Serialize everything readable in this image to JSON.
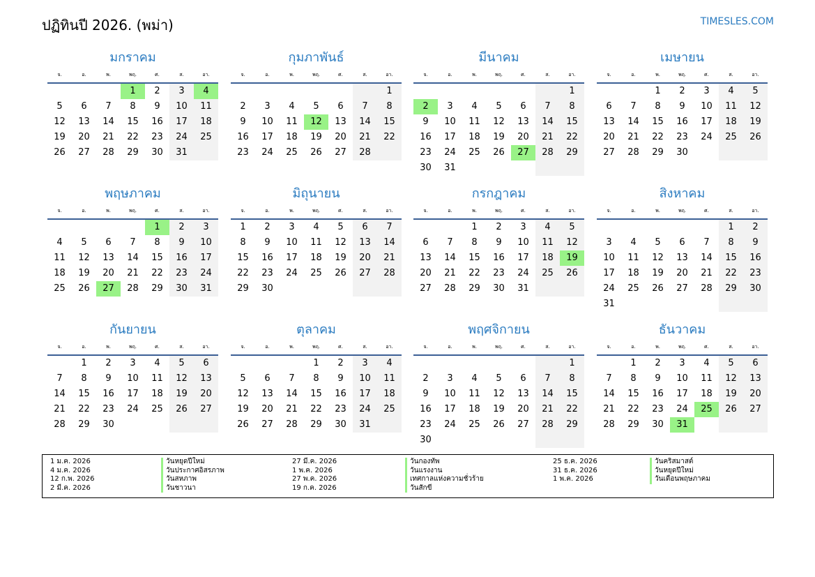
{
  "header": {
    "title": "ปฏิทินปี 2026. (พม่า)",
    "brand": "TIMESLES.COM"
  },
  "calendar": {
    "year": 2026,
    "weekdays": [
      "จ.",
      "อ.",
      "พ.",
      "พฤ.",
      "ศ.",
      "ส.",
      "อา."
    ],
    "colors": {
      "holiday": "#99f287",
      "weekend": "#f2f2f2",
      "accent": "#2a7bc0"
    },
    "months": [
      {
        "name": "มกราคม",
        "holidays": [
          1,
          4
        ]
      },
      {
        "name": "กุมภาพันธ์",
        "holidays": [
          12
        ]
      },
      {
        "name": "มีนาคม",
        "holidays": [
          2,
          27
        ]
      },
      {
        "name": "เมษายน",
        "holidays": []
      },
      {
        "name": "พฤษภาคม",
        "holidays": [
          1,
          27
        ]
      },
      {
        "name": "มิถุนายน",
        "holidays": []
      },
      {
        "name": "กรกฎาคม",
        "holidays": [
          19
        ]
      },
      {
        "name": "สิงหาคม",
        "holidays": []
      },
      {
        "name": "กันยายน",
        "holidays": []
      },
      {
        "name": "ตุลาคม",
        "holidays": []
      },
      {
        "name": "พฤศจิกายน",
        "holidays": []
      },
      {
        "name": "ธันวาคม",
        "holidays": [
          25,
          31
        ]
      }
    ]
  },
  "legend": [
    [
      {
        "date": "1 ม.ค. 2026",
        "name": "วันหยุดปีใหม่"
      },
      {
        "date": "4 ม.ค. 2026",
        "name": "วันประกาศอิสรภาพ"
      },
      {
        "date": "12 ก.พ. 2026",
        "name": "วันสหภาพ"
      },
      {
        "date": "2 มี.ค. 2026",
        "name": "วันชาวนา"
      }
    ],
    [
      {
        "date": "27 มี.ค. 2026",
        "name": "วันกองทัพ"
      },
      {
        "date": "1 พ.ค. 2026",
        "name": "วันแรงงาน"
      },
      {
        "date": "27 พ.ค. 2026",
        "name": "เทศกาลแห่งความชั่วร้าย"
      },
      {
        "date": "19 ก.ค. 2026",
        "name": "วันสักขี"
      }
    ],
    [
      {
        "date": "25 ธ.ค. 2026",
        "name": "วันคริสมาสต์"
      },
      {
        "date": "31 ธ.ค. 2026",
        "name": "วันหยุดปีใหม่"
      },
      {
        "date": "1 พ.ค. 2026",
        "name": "วันเดือนพฤษภาคม"
      }
    ]
  ]
}
